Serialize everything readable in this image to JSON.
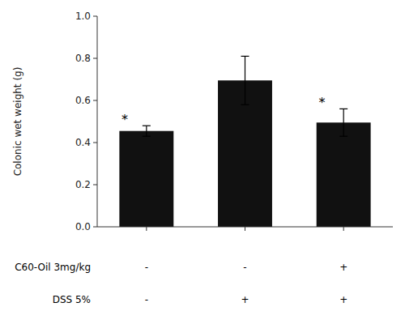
{
  "chart_data": {
    "type": "bar",
    "categories": [
      null,
      null,
      null
    ],
    "values": [
      0.455,
      0.695,
      0.495
    ],
    "errors": [
      0.025,
      0.115,
      0.065
    ],
    "color": "#111111",
    "ylabel": "Colonic wet weight (g)",
    "ylim": [
      0,
      1.0
    ],
    "yticks": [
      {
        "value": 0.0,
        "label": "0.0"
      },
      0.2,
      0.4,
      0.6,
      0.8,
      {
        "value": 1.0,
        "label": "1.0"
      }
    ],
    "grid": false,
    "annotations": [
      {
        "text": "*",
        "index": 0
      },
      {
        "text": "*",
        "index": 2
      }
    ],
    "rows": [
      {
        "label": "C60-Oil 3mg/kg",
        "values": [
          "-",
          "-",
          "+"
        ]
      },
      {
        "label": "DSS 5%",
        "values": [
          "-",
          "+",
          "+"
        ]
      }
    ]
  }
}
